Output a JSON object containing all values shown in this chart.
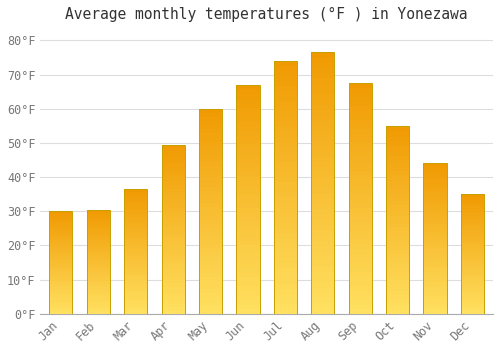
{
  "title": "Average monthly temperatures (°F ) in Yonezawa",
  "months": [
    "Jan",
    "Feb",
    "Mar",
    "Apr",
    "May",
    "Jun",
    "Jul",
    "Aug",
    "Sep",
    "Oct",
    "Nov",
    "Dec"
  ],
  "values": [
    30,
    30.5,
    36.5,
    49.5,
    60,
    67,
    74,
    76.5,
    67.5,
    55,
    44,
    35
  ],
  "bar_color_top": "#F5A800",
  "bar_color_bottom": "#FFD966",
  "bar_edge_color": "#C8A000",
  "background_color": "#FFFFFF",
  "grid_color": "#DDDDDD",
  "yticks": [
    0,
    10,
    20,
    30,
    40,
    50,
    60,
    70,
    80
  ],
  "ylim": [
    0,
    83
  ],
  "title_fontsize": 10.5,
  "tick_fontsize": 8.5,
  "font_family": "monospace"
}
